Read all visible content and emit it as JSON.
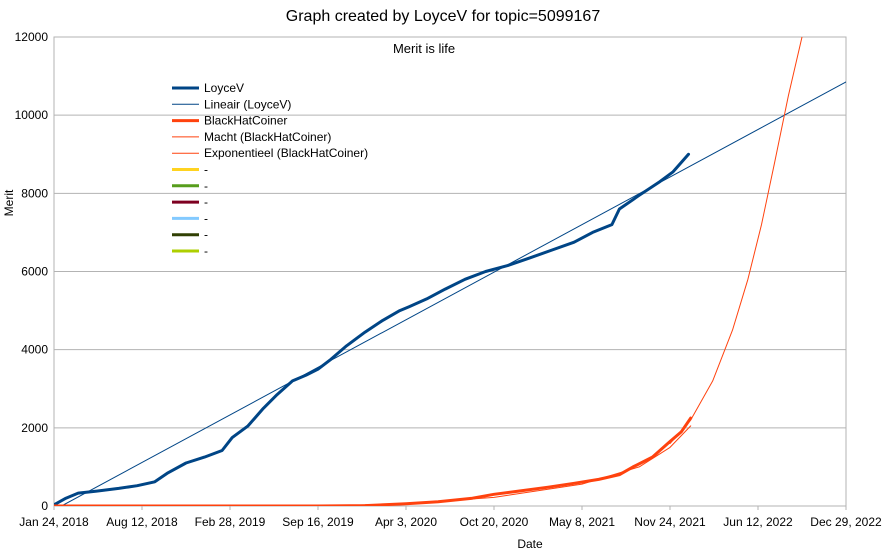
{
  "chart_data": {
    "type": "line",
    "title": "Graph created by LoyceV for topic=5099167",
    "subtitle": "Merit is life",
    "xlabel": "Date",
    "ylabel": "Merit",
    "ylim": [
      0,
      12000
    ],
    "yticks": [
      0,
      2000,
      4000,
      6000,
      8000,
      10000,
      12000
    ],
    "xlim": [
      "2018-01-24",
      "2022-12-29"
    ],
    "xticks": [
      "Jan 24, 2018",
      "Aug 12, 2018",
      "Feb 28, 2019",
      "Sep 16, 2019",
      "Apr 3, 2020",
      "Oct 20, 2020",
      "May 8, 2021",
      "Nov 24, 2021",
      "Jun 12, 2022",
      "Dec 29, 2022"
    ],
    "grid": "horizontal",
    "legend_position": "top-left",
    "series": [
      {
        "name": "LoyceV",
        "color": "#004586",
        "style": "thick",
        "points": [
          [
            "2018-01-24",
            30
          ],
          [
            "2018-02-20",
            200
          ],
          [
            "2018-03-20",
            330
          ],
          [
            "2018-05-01",
            380
          ],
          [
            "2018-06-20",
            450
          ],
          [
            "2018-08-01",
            520
          ],
          [
            "2018-09-10",
            620
          ],
          [
            "2018-10-10",
            850
          ],
          [
            "2018-11-20",
            1100
          ],
          [
            "2019-01-01",
            1250
          ],
          [
            "2019-02-10",
            1420
          ],
          [
            "2019-03-05",
            1750
          ],
          [
            "2019-04-10",
            2050
          ],
          [
            "2019-05-15",
            2500
          ],
          [
            "2019-06-15",
            2850
          ],
          [
            "2019-07-20",
            3200
          ],
          [
            "2019-08-20",
            3350
          ],
          [
            "2019-09-16",
            3500
          ],
          [
            "2019-10-15",
            3750
          ],
          [
            "2019-11-20",
            4100
          ],
          [
            "2020-01-01",
            4450
          ],
          [
            "2020-02-10",
            4750
          ],
          [
            "2020-03-20",
            5000
          ],
          [
            "2020-04-10",
            5100
          ],
          [
            "2020-05-20",
            5300
          ],
          [
            "2020-07-01",
            5550
          ],
          [
            "2020-08-15",
            5800
          ],
          [
            "2020-10-01",
            6000
          ],
          [
            "2020-11-20",
            6150
          ],
          [
            "2021-01-10",
            6350
          ],
          [
            "2021-03-01",
            6550
          ],
          [
            "2021-04-20",
            6750
          ],
          [
            "2021-06-01",
            7000
          ],
          [
            "2021-07-15",
            7200
          ],
          [
            "2021-08-01",
            7600
          ],
          [
            "2021-09-15",
            7950
          ],
          [
            "2021-11-01",
            8300
          ],
          [
            "2021-12-01",
            8550
          ],
          [
            "2022-01-05",
            9000
          ]
        ]
      },
      {
        "name": "Lineair (LoyceV)",
        "color": "#004586",
        "style": "thin",
        "points": [
          [
            "2018-02-10",
            0
          ],
          [
            "2022-12-29",
            10850
          ]
        ]
      },
      {
        "name": "BlackHatCoiner",
        "color": "#ff420e",
        "style": "thick",
        "points": [
          [
            "2018-01-24",
            0
          ],
          [
            "2019-09-16",
            0
          ],
          [
            "2020-01-01",
            10
          ],
          [
            "2020-04-03",
            60
          ],
          [
            "2020-06-15",
            110
          ],
          [
            "2020-09-01",
            200
          ],
          [
            "2020-10-20",
            300
          ],
          [
            "2020-12-15",
            380
          ],
          [
            "2021-02-20",
            480
          ],
          [
            "2021-04-20",
            580
          ],
          [
            "2021-06-15",
            680
          ],
          [
            "2021-08-01",
            800
          ],
          [
            "2021-09-01",
            1000
          ],
          [
            "2021-10-15",
            1250
          ],
          [
            "2021-11-24",
            1650
          ],
          [
            "2021-12-20",
            1900
          ],
          [
            "2022-01-10",
            2250
          ]
        ]
      },
      {
        "name": "Macht (BlackHatCoiner)",
        "color": "#ff420e",
        "style": "thin",
        "points": [
          [
            "2018-01-24",
            0
          ],
          [
            "2019-06-01",
            0
          ],
          [
            "2019-12-01",
            20
          ],
          [
            "2020-04-03",
            60
          ],
          [
            "2020-10-20",
            220
          ],
          [
            "2021-05-08",
            560
          ],
          [
            "2021-09-15",
            1000
          ],
          [
            "2021-11-24",
            1500
          ],
          [
            "2022-01-10",
            2050
          ]
        ]
      },
      {
        "name": "Exponentieel (BlackHatCoiner)",
        "color": "#ff420e",
        "style": "thin",
        "points": [
          [
            "2021-11-24",
            1600
          ],
          [
            "2022-01-10",
            2200
          ],
          [
            "2022-03-01",
            3200
          ],
          [
            "2022-04-15",
            4500
          ],
          [
            "2022-05-20",
            5800
          ],
          [
            "2022-06-20",
            7200
          ],
          [
            "2022-07-20",
            8800
          ],
          [
            "2022-08-20",
            10500
          ],
          [
            "2022-09-20",
            12000
          ]
        ]
      },
      {
        "name": "-",
        "color": "#ffd320",
        "style": "thick",
        "points": []
      },
      {
        "name": "-",
        "color": "#579d1c",
        "style": "thick",
        "points": []
      },
      {
        "name": "-",
        "color": "#7e0021",
        "style": "thick",
        "points": []
      },
      {
        "name": "-",
        "color": "#83caff",
        "style": "thick",
        "points": []
      },
      {
        "name": "-",
        "color": "#314004",
        "style": "thick",
        "points": []
      },
      {
        "name": "-",
        "color": "#aecf00",
        "style": "thick",
        "points": []
      }
    ]
  }
}
